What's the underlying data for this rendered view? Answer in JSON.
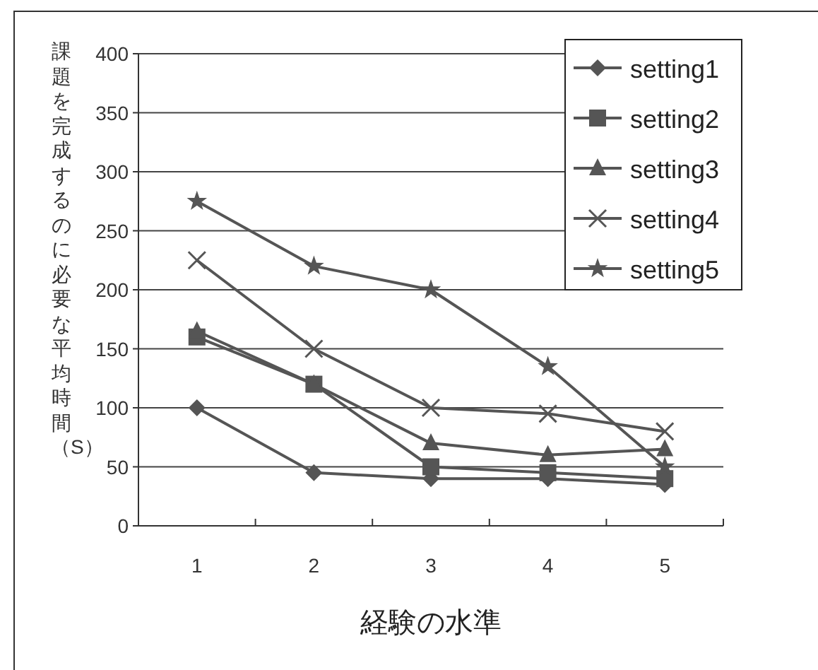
{
  "chart_data": {
    "type": "line",
    "xlabel": "経験の水準",
    "ylabel": "課題を完成するのに必要な平均時間（S）",
    "categories": [
      "1",
      "2",
      "3",
      "4",
      "5"
    ],
    "ylim": [
      0,
      400
    ],
    "yticks": [
      0,
      50,
      100,
      150,
      200,
      250,
      300,
      350,
      400
    ],
    "grid": "y",
    "legend": "top right",
    "series": [
      {
        "name": "setting1",
        "color": "#555555",
        "marker": "diamond",
        "values": [
          100,
          45,
          40,
          40,
          35
        ]
      },
      {
        "name": "setting2",
        "color": "#555555",
        "marker": "square",
        "values": [
          160,
          120,
          50,
          45,
          40
        ]
      },
      {
        "name": "setting3",
        "color": "#555555",
        "marker": "triangle",
        "values": [
          165,
          120,
          70,
          60,
          65
        ]
      },
      {
        "name": "setting4",
        "color": "#555555",
        "marker": "cross",
        "values": [
          225,
          150,
          100,
          95,
          80
        ]
      },
      {
        "name": "setting5",
        "color": "#555555",
        "marker": "star",
        "values": [
          275,
          220,
          200,
          135,
          50
        ]
      }
    ]
  }
}
